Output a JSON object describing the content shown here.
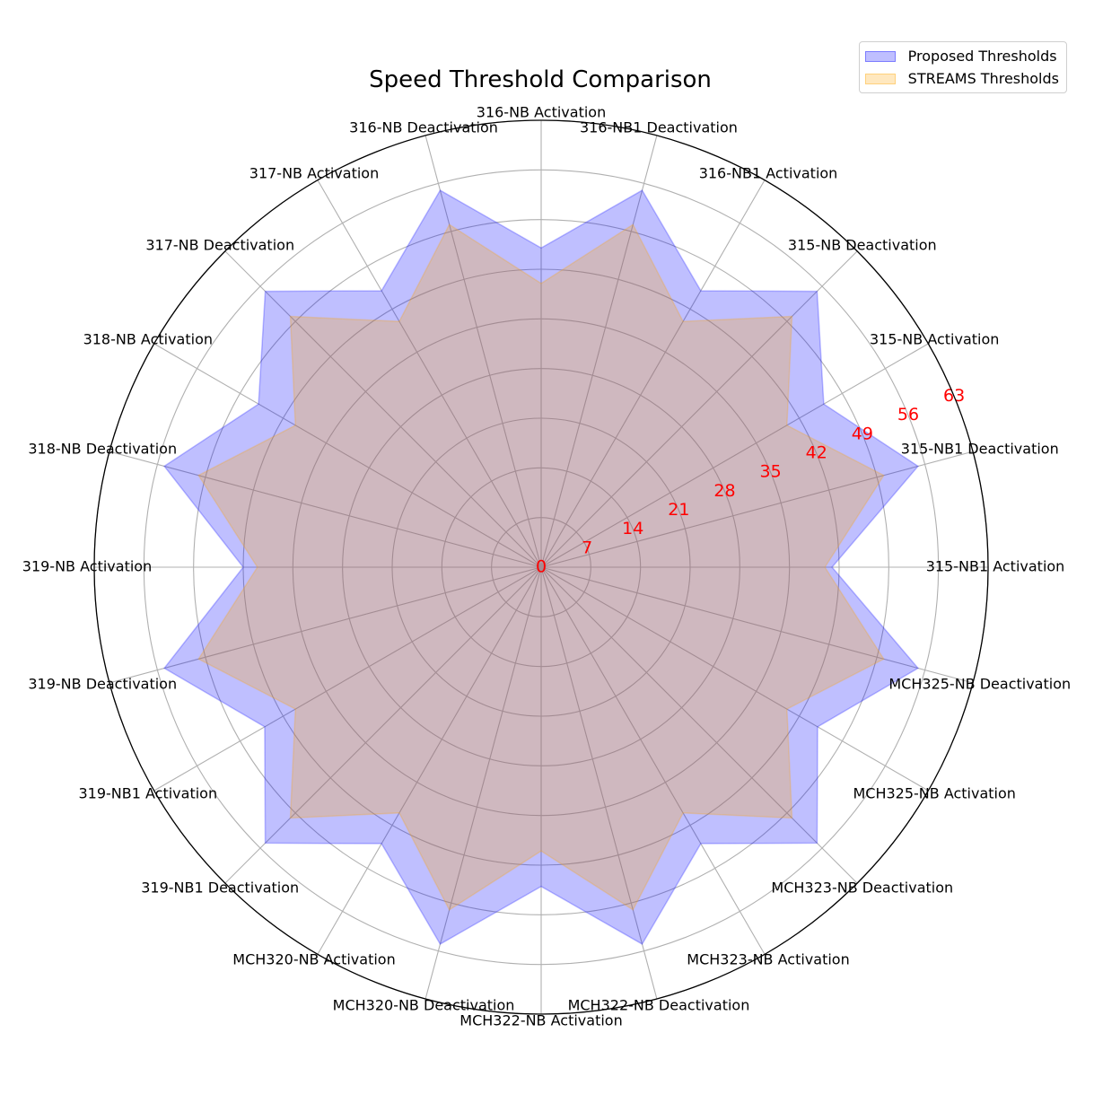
{
  "chart_data": {
    "type": "radar",
    "title": "Speed Threshold Comparison",
    "categories": [
      "315-NB1 Activation",
      "315-NB1 Deactivation",
      "315-NB Activation",
      "315-NB Deactivation",
      "316-NB1 Activation",
      "316-NB1 Deactivation",
      "316-NB Activation",
      "316-NB Deactivation",
      "317-NB Activation",
      "317-NB Deactivation",
      "318-NB Activation",
      "318-NB Deactivation",
      "319-NB Activation",
      "319-NB Deactivation",
      "319-NB1 Activation",
      "319-NB1 Deactivation",
      "MCH320-NB Activation",
      "MCH320-NB Deactivation",
      "MCH322-NB Activation",
      "MCH322-NB Deactivation",
      "MCH323-NB Activation",
      "MCH323-NB Deactivation",
      "MCH325-NB Activation",
      "MCH325-NB Deactivation"
    ],
    "series": [
      {
        "name": "Proposed Thresholds",
        "color": "#0000ff",
        "values": [
          41,
          55,
          46,
          55,
          45,
          55,
          45,
          55,
          45,
          55,
          46,
          55,
          42,
          55,
          45,
          55,
          45,
          55,
          45,
          55,
          45,
          55,
          45,
          55
        ]
      },
      {
        "name": "STREAMS Thresholds",
        "color": "#ffa500",
        "values": [
          40,
          50,
          40,
          50,
          40,
          50,
          40,
          50,
          40,
          50,
          40,
          50,
          40,
          50,
          40,
          50,
          40,
          50,
          40,
          50,
          40,
          50,
          40,
          50
        ]
      }
    ],
    "r_ticks": [
      "0",
      "7",
      "14",
      "21",
      "28",
      "35",
      "42",
      "49",
      "56",
      "63"
    ],
    "r_tick_color": "#ff0000",
    "rlim": [
      0,
      63
    ],
    "grid": true,
    "legend_position": "top-right"
  }
}
